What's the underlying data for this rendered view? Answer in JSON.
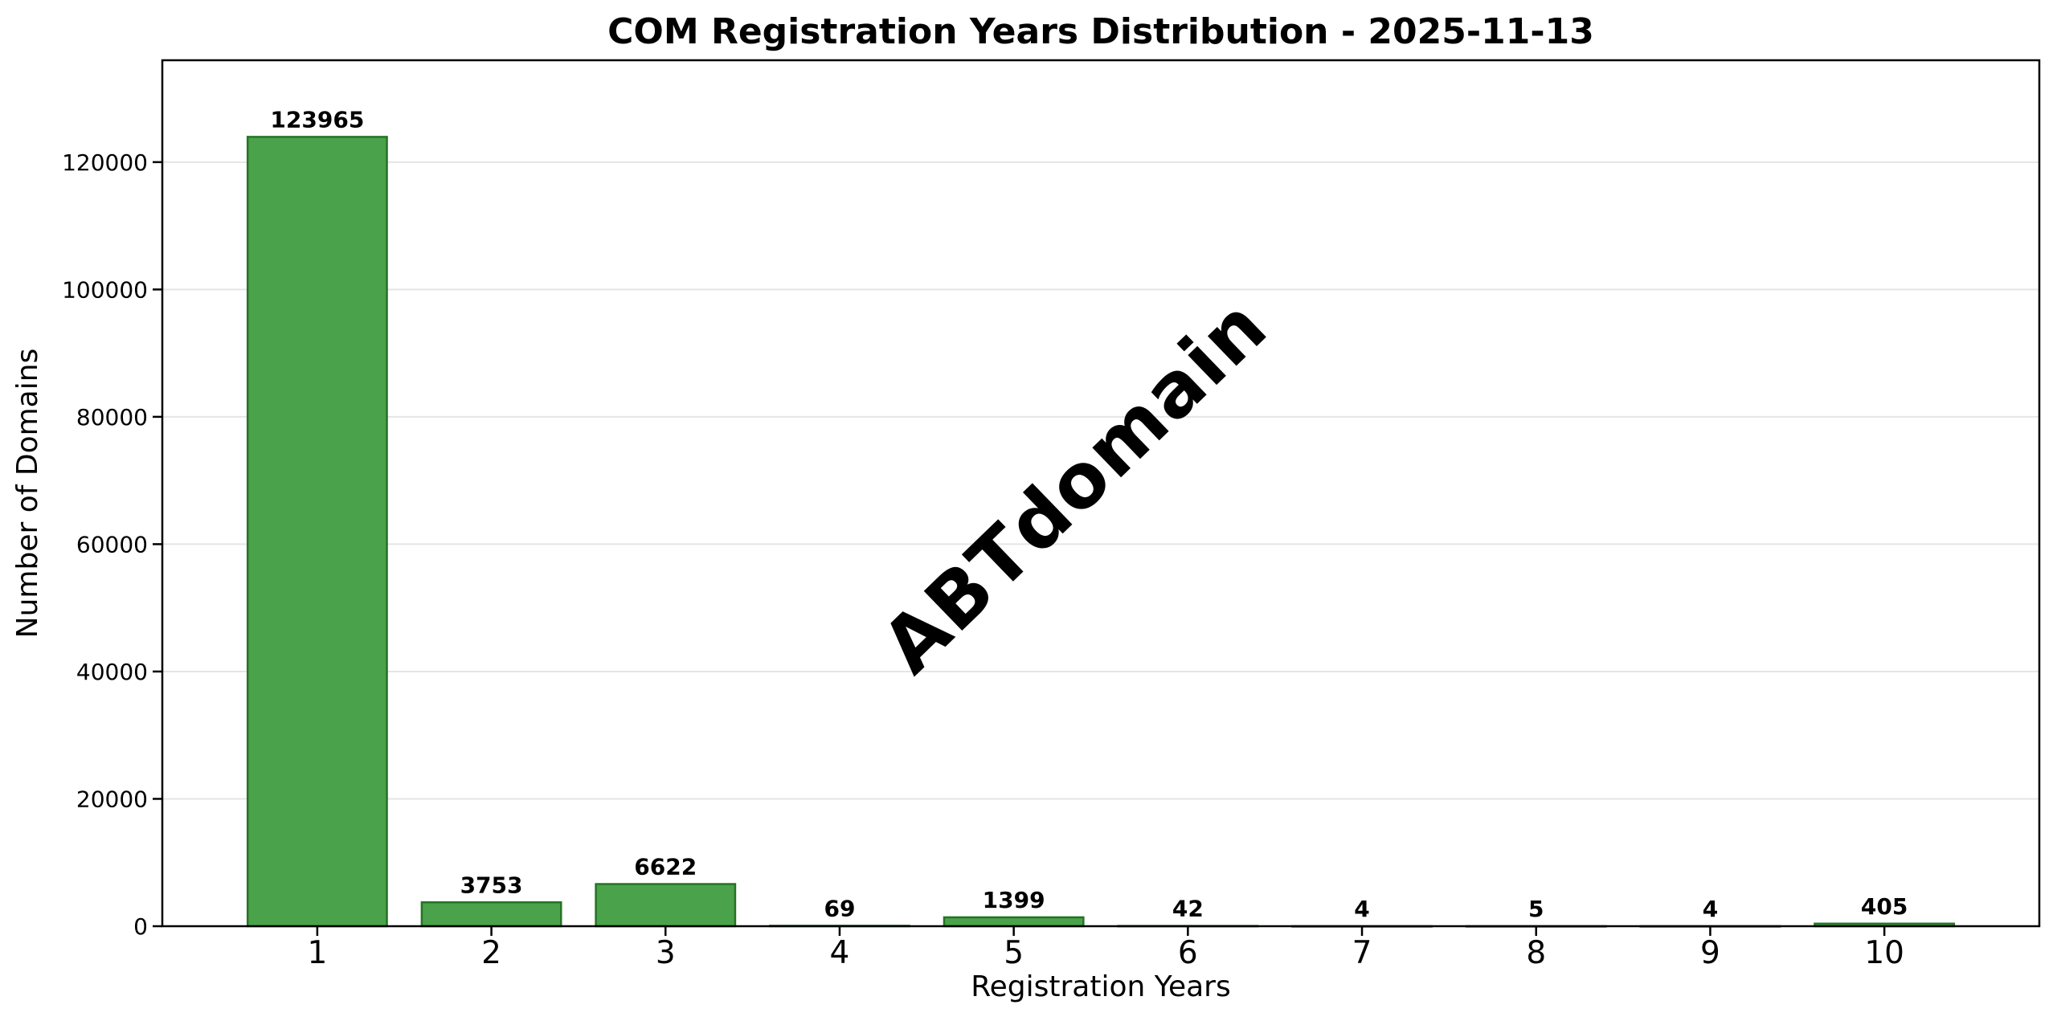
{
  "chart_data": {
    "type": "bar",
    "title": "COM Registration Years Distribution - 2025-11-13",
    "xlabel": "Registration Years",
    "ylabel": "Number of Domains",
    "categories": [
      "1",
      "2",
      "3",
      "4",
      "5",
      "6",
      "7",
      "8",
      "9",
      "10"
    ],
    "values": [
      123965,
      3753,
      6622,
      69,
      1399,
      42,
      4,
      5,
      4,
      405
    ],
    "bar_value_labels": [
      "123965",
      "3753",
      "6622",
      "69",
      "1399",
      "42",
      "4",
      "5",
      "4",
      "405"
    ],
    "x_positions": [
      1,
      2,
      3,
      4,
      5,
      6,
      7,
      8,
      9,
      10
    ],
    "bar_width": 0.8,
    "yticks": [
      0,
      20000,
      40000,
      60000,
      80000,
      100000,
      120000
    ],
    "ylim": [
      0,
      136000
    ],
    "xlim": [
      0.11,
      10.89
    ],
    "grid": "horizontal",
    "legend": "none",
    "watermark": "ABTdomain",
    "colors": {
      "bar_fill": "#4aa34a",
      "bar_edge": "#267326",
      "grid": "#e5e5e5",
      "axis": "#000000",
      "text": "#000000",
      "watermark": "#d8d8d8",
      "background": "#ffffff"
    }
  }
}
